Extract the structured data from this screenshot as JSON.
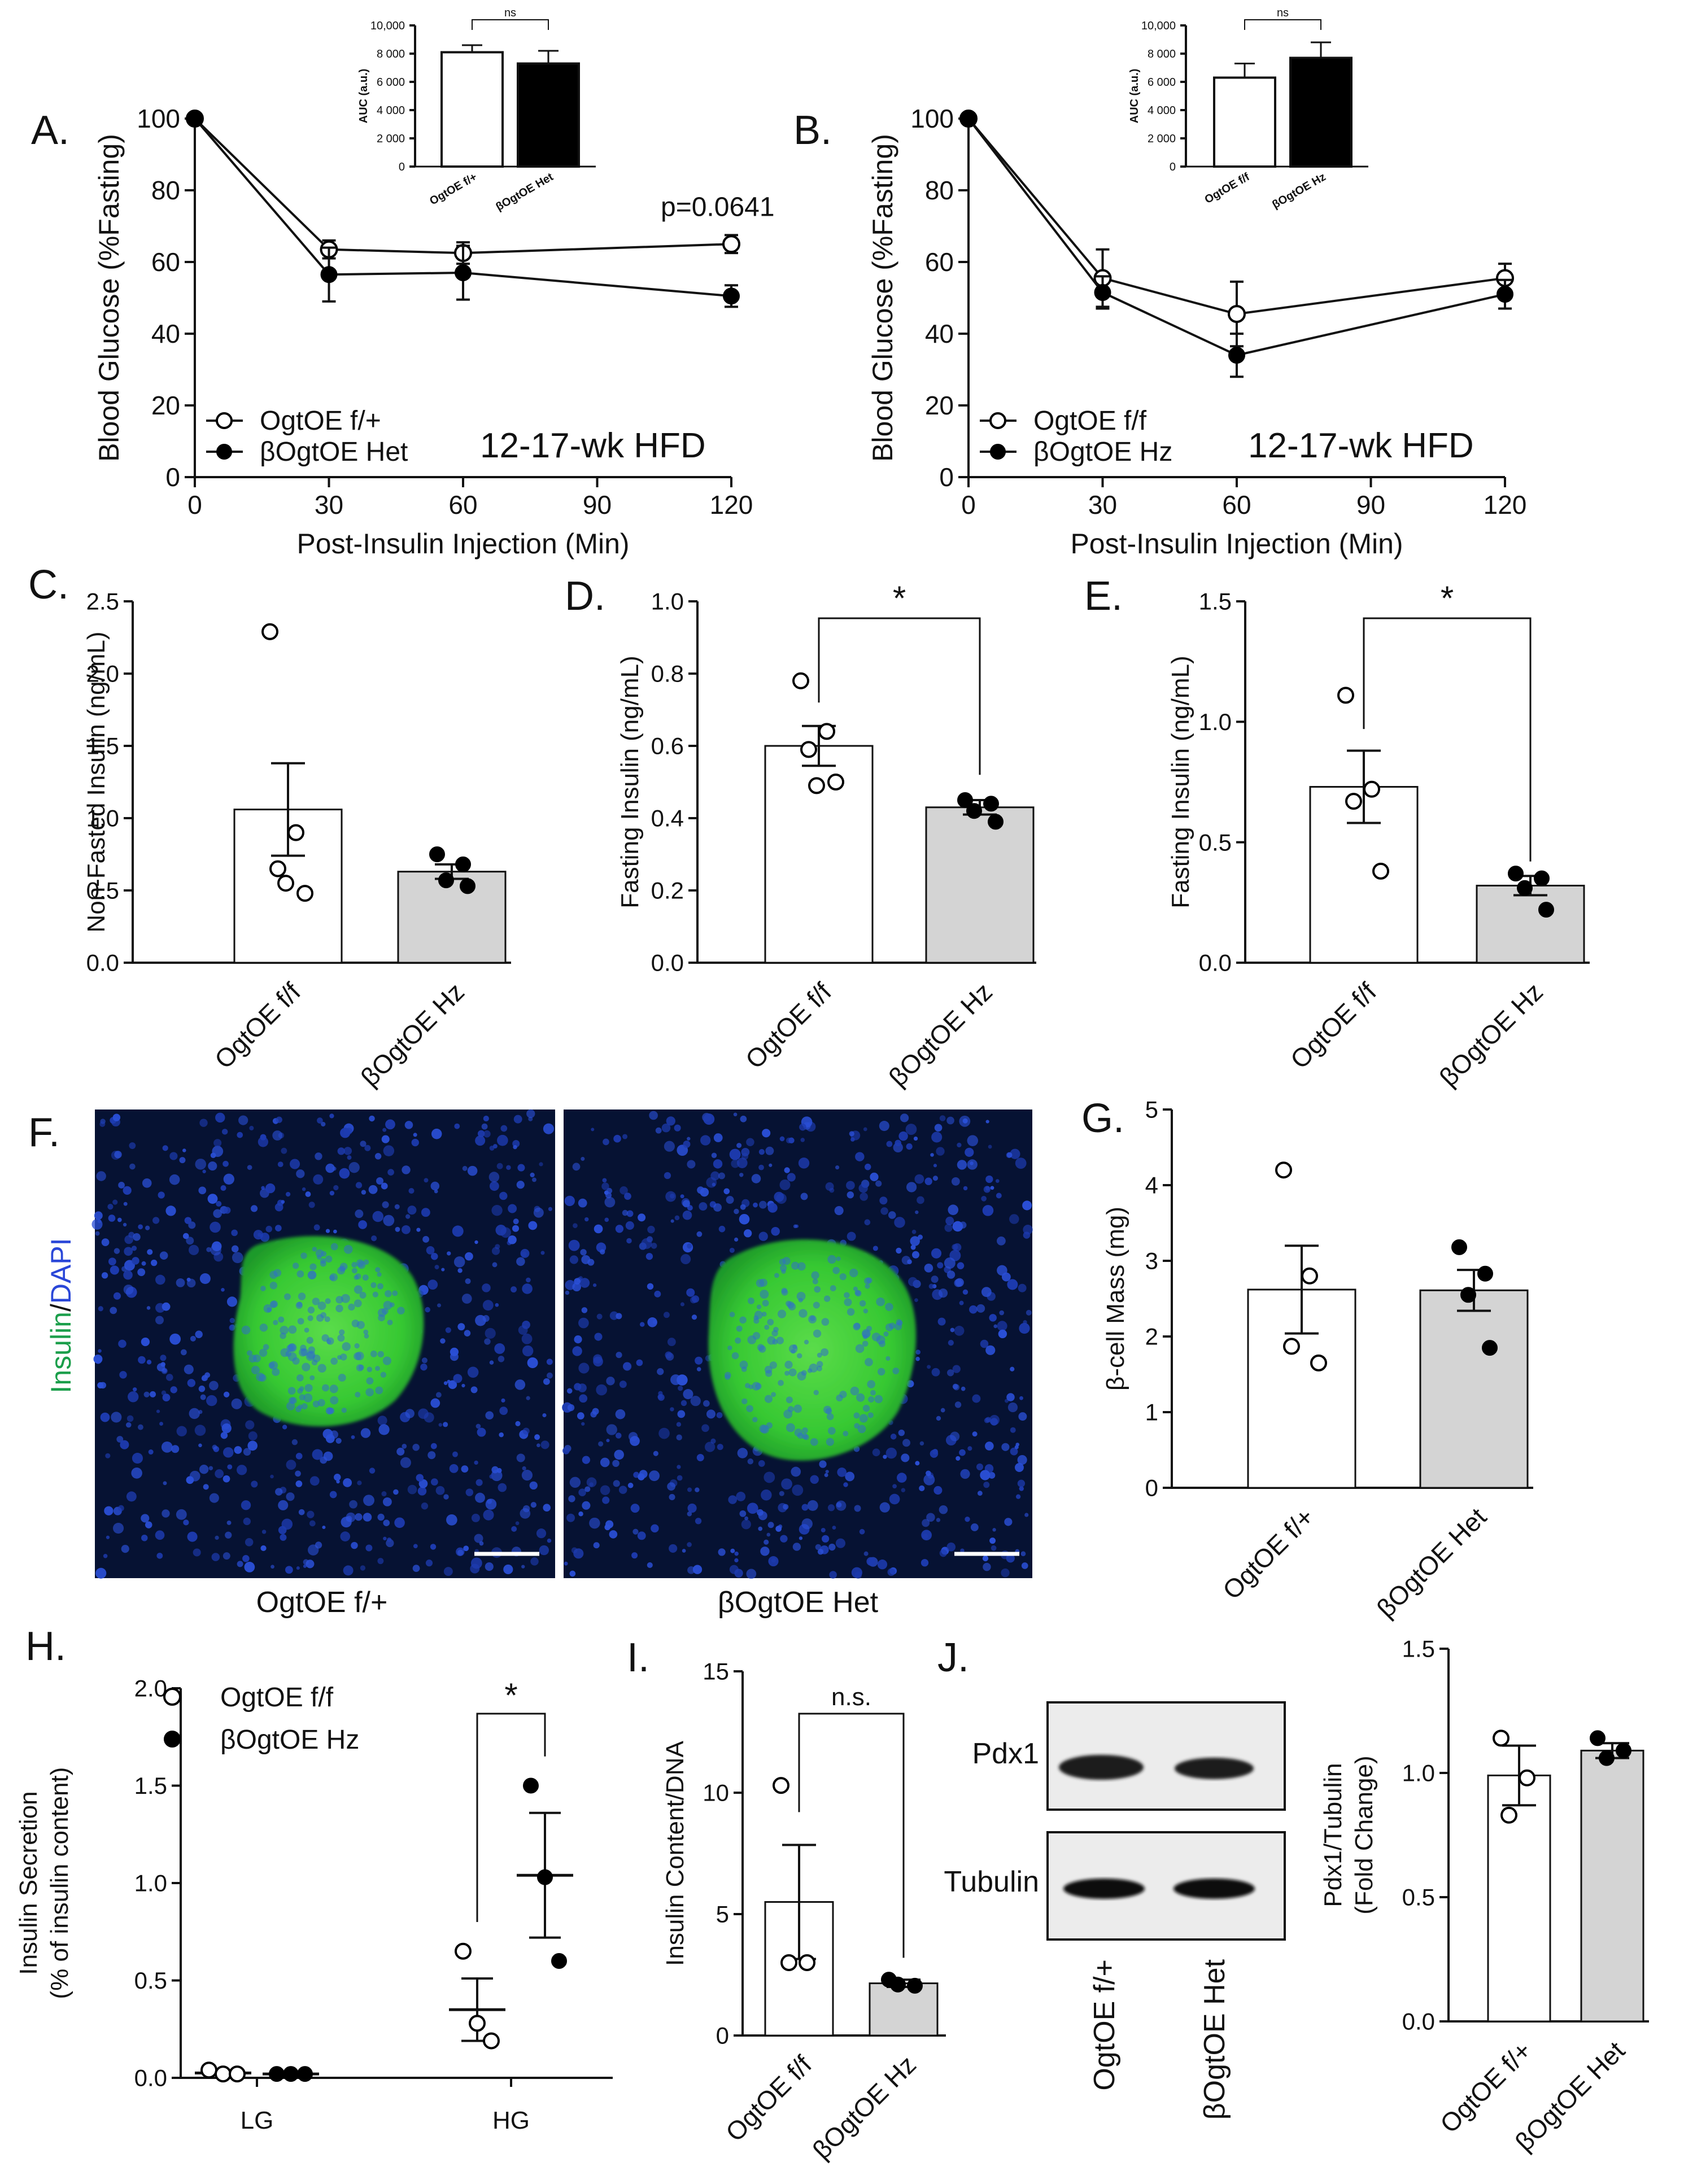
{
  "panel_letters": {
    "A": "A.",
    "B": "B.",
    "C": "C.",
    "D": "D.",
    "E": "E.",
    "F": "F.",
    "G": "G.",
    "H": "H.",
    "I": "I.",
    "J": "J."
  },
  "chart_data": [
    {
      "id": "A",
      "type": "line",
      "xlabel": "Post-Insulin Injection (Min)",
      "ylabel": "Blood Glucose (%Fasting)",
      "xlim": [
        0,
        120
      ],
      "ylim": [
        0,
        100
      ],
      "xticks": [
        0,
        30,
        60,
        90,
        120
      ],
      "yticks": [
        0,
        20,
        40,
        60,
        80,
        100
      ],
      "annotation": "12-17-wk HFD",
      "pvalue": "p=0.0641",
      "legend_placement": "bottom-left",
      "series": [
        {
          "name": "OgtOE f/+",
          "marker": "open",
          "x": [
            0,
            30,
            60,
            120
          ],
          "y": [
            100,
            63.5,
            62.5,
            65
          ],
          "err": [
            0,
            2.5,
            3,
            2.5
          ]
        },
        {
          "name": "βOgtOE Het",
          "marker": "filled",
          "x": [
            0,
            30,
            60,
            120
          ],
          "y": [
            100,
            56.5,
            57,
            50.5
          ],
          "err": [
            0,
            7.5,
            7.5,
            3
          ]
        }
      ],
      "inset": {
        "type": "bar",
        "ylabel": "AUC (a.u.)",
        "ylim": [
          0,
          10000
        ],
        "yticks": [
          0,
          2000,
          4000,
          6000,
          8000,
          10000
        ],
        "ytick_labels": [
          "0",
          "2 000",
          "4 000",
          "6 000",
          "8 000",
          "10,000"
        ],
        "categories": [
          "OgtOE f/+",
          "βOgtOE Het"
        ],
        "values": [
          8100,
          7300
        ],
        "err": [
          500,
          900
        ],
        "fills": [
          "#ffffff",
          "#000000"
        ],
        "sig": "ns"
      }
    },
    {
      "id": "B",
      "type": "line",
      "xlabel": "Post-Insulin Injection (Min)",
      "ylabel": "Blood Glucose (%Fasting)",
      "xlim": [
        0,
        120
      ],
      "ylim": [
        0,
        100
      ],
      "xticks": [
        0,
        30,
        60,
        90,
        120
      ],
      "yticks": [
        0,
        20,
        40,
        60,
        80,
        100
      ],
      "annotation": "12-17-wk HFD",
      "legend_placement": "bottom-left",
      "series": [
        {
          "name": "OgtOE f/f",
          "marker": "open",
          "x": [
            0,
            30,
            60,
            120
          ],
          "y": [
            100,
            55.5,
            45.5,
            55.5
          ],
          "err": [
            0,
            8,
            9,
            4
          ]
        },
        {
          "name": "βOgtOE Hz",
          "marker": "filled",
          "x": [
            0,
            30,
            60,
            120
          ],
          "y": [
            100,
            51.5,
            34,
            51
          ],
          "err": [
            0,
            4.5,
            6,
            4
          ]
        }
      ],
      "inset": {
        "type": "bar",
        "ylabel": "AUC (a.u.)",
        "ylim": [
          0,
          10000
        ],
        "yticks": [
          0,
          2000,
          4000,
          6000,
          8000,
          10000
        ],
        "ytick_labels": [
          "0",
          "2 000",
          "4 000",
          "6 000",
          "8 000",
          "10,000"
        ],
        "categories": [
          "OgtOE f/f",
          "βOgtOE Hz"
        ],
        "values": [
          6300,
          7700
        ],
        "err": [
          1000,
          1100
        ],
        "fills": [
          "#ffffff",
          "#000000"
        ],
        "sig": "ns"
      }
    },
    {
      "id": "C",
      "type": "bar",
      "ylabel": "Non-Fasted Insulin (ng/mL)",
      "ylim": [
        0,
        2.5
      ],
      "yticks": [
        0,
        0.5,
        1.0,
        1.5,
        2.0,
        2.5
      ],
      "ytick_labels": [
        "0.0",
        "0.5",
        "1.0",
        "1.5",
        "2.0",
        "2.5"
      ],
      "categories": [
        "OgtOE f/f",
        "βOgtOE Hz"
      ],
      "values": [
        1.06,
        0.63
      ],
      "err": [
        0.32,
        0.05
      ],
      "fills": [
        "#ffffff",
        "#d4d4d4"
      ],
      "points": [
        [
          2.29,
          0.9,
          0.65,
          0.48,
          0.55
        ],
        [
          0.75,
          0.68,
          0.57,
          0.53
        ]
      ],
      "markers": [
        "open",
        "filled"
      ]
    },
    {
      "id": "D",
      "type": "bar",
      "ylabel": "Fasting Insulin (ng/mL)",
      "ylim": [
        0,
        1.0
      ],
      "yticks": [
        0,
        0.2,
        0.4,
        0.6,
        0.8,
        1.0
      ],
      "ytick_labels": [
        "0.0",
        "0.2",
        "0.4",
        "0.6",
        "0.8",
        "1.0"
      ],
      "categories": [
        "OgtOE f/f",
        "βOgtOE Hz"
      ],
      "values": [
        0.6,
        0.43
      ],
      "err": [
        0.055,
        0.02
      ],
      "fills": [
        "#ffffff",
        "#d4d4d4"
      ],
      "points": [
        [
          0.78,
          0.64,
          0.59,
          0.5,
          0.49
        ],
        [
          0.45,
          0.44,
          0.42,
          0.39
        ]
      ],
      "markers": [
        "open",
        "filled"
      ],
      "sig": "*"
    },
    {
      "id": "E",
      "type": "bar",
      "ylabel": "Fasting Insulin (ng/mL)",
      "ylim": [
        0,
        1.5
      ],
      "yticks": [
        0,
        0.5,
        1.0,
        1.5
      ],
      "ytick_labels": [
        "0.0",
        "0.5",
        "1.0",
        "1.5"
      ],
      "categories": [
        "OgtOE f/f",
        "βOgtOE Hz"
      ],
      "values": [
        0.73,
        0.32
      ],
      "err": [
        0.15,
        0.04
      ],
      "fills": [
        "#ffffff",
        "#d4d4d4"
      ],
      "points": [
        [
          1.11,
          0.72,
          0.67,
          0.38
        ],
        [
          0.37,
          0.35,
          0.31,
          0.22
        ]
      ],
      "markers": [
        "open",
        "filled"
      ],
      "sig": "*"
    },
    {
      "id": "G",
      "type": "bar",
      "ylabel": "β-cell Mass (mg)",
      "ylim": [
        0,
        5
      ],
      "yticks": [
        0,
        1,
        2,
        3,
        4,
        5
      ],
      "ytick_labels": [
        "0",
        "1",
        "2",
        "3",
        "4",
        "5"
      ],
      "categories": [
        "OgtOE f/+",
        "βOgtOE Het"
      ],
      "values": [
        2.62,
        2.61
      ],
      "err": [
        0.58,
        0.27
      ],
      "fills": [
        "#ffffff",
        "#d4d4d4"
      ],
      "points": [
        [
          4.2,
          2.8,
          1.87,
          1.65
        ],
        [
          3.18,
          2.83,
          2.55,
          1.85
        ]
      ],
      "markers": [
        "open",
        "filled"
      ]
    },
    {
      "id": "H",
      "type": "scatter",
      "ylabel_lines": [
        "Insulin Secretion",
        "(% of insulin content)"
      ],
      "ylim": [
        0,
        2.0
      ],
      "yticks": [
        0,
        0.5,
        1.0,
        1.5,
        2.0
      ],
      "ytick_labels": [
        "0.0",
        "0.5",
        "1.0",
        "1.5",
        "2.0"
      ],
      "categories": [
        "LG",
        "HG"
      ],
      "legend_placement": "top-left",
      "series": [
        {
          "name": "OgtOE f/f",
          "marker": "open",
          "means": [
            0.025,
            0.35
          ],
          "err": [
            0.005,
            0.16
          ],
          "points": [
            [
              0.04,
              0.02,
              0.02
            ],
            [
              0.65,
              0.28,
              0.19
            ]
          ]
        },
        {
          "name": "βOgtOE Hz",
          "marker": "filled",
          "means": [
            0.02,
            1.04
          ],
          "err": [
            0.003,
            0.32
          ],
          "points": [
            [
              0.02,
              0.02,
              0.02
            ],
            [
              1.5,
              1.03,
              0.6
            ]
          ]
        }
      ],
      "sig": "*"
    },
    {
      "id": "I",
      "type": "bar",
      "ylabel": "Insulin Content/DNA",
      "ylim": [
        0,
        15
      ],
      "yticks": [
        0,
        5,
        10,
        15
      ],
      "ytick_labels": [
        "0",
        "5",
        "10",
        "15"
      ],
      "categories": [
        "OgtOE f/f",
        "βOgtOE Hz"
      ],
      "values": [
        5.5,
        2.15
      ],
      "err": [
        2.35,
        0.15
      ],
      "fills": [
        "#ffffff",
        "#d4d4d4"
      ],
      "points": [
        [
          10.3,
          3.0,
          3.0
        ],
        [
          2.3,
          2.05,
          2.1
        ]
      ],
      "markers": [
        "open",
        "filled"
      ],
      "sig": "n.s."
    },
    {
      "id": "J",
      "type": "bar",
      "ylabel_lines": [
        "Pdx1/Tubulin",
        "(Fold Change)"
      ],
      "ylim": [
        0,
        1.5
      ],
      "yticks": [
        0,
        0.5,
        1.0,
        1.5
      ],
      "ytick_labels": [
        "0.0",
        "0.5",
        "1.0",
        "1.5"
      ],
      "categories": [
        "OgtOE f/+",
        "βOgtOE Het"
      ],
      "values": [
        0.99,
        1.09
      ],
      "err": [
        0.12,
        0.03
      ],
      "fills": [
        "#ffffff",
        "#d4d4d4"
      ],
      "points": [
        [
          1.14,
          0.98,
          0.83
        ],
        [
          1.14,
          1.09,
          1.06
        ]
      ],
      "markers": [
        "open",
        "filled"
      ]
    }
  ],
  "microscopy": {
    "stain_label_green": "Insulin",
    "stain_label_slash": "/",
    "stain_label_blue": "DAPI",
    "captions": [
      "OgtOE f/+",
      "βOgtOE Het"
    ]
  },
  "western_blot": {
    "bands": [
      "Pdx1",
      "Tubulin"
    ],
    "lanes": [
      "OgtOE f/+",
      "βOgtOE Het"
    ]
  },
  "colors": {
    "axis": "#111111",
    "bar_gray": "#d4d4d4",
    "microscopy_bg": "#061233",
    "nuclei": "#2a4fd6",
    "islet_green": "#33cc33",
    "insulin_label": "#1a9e4a",
    "dapi_label": "#2a47d8"
  }
}
